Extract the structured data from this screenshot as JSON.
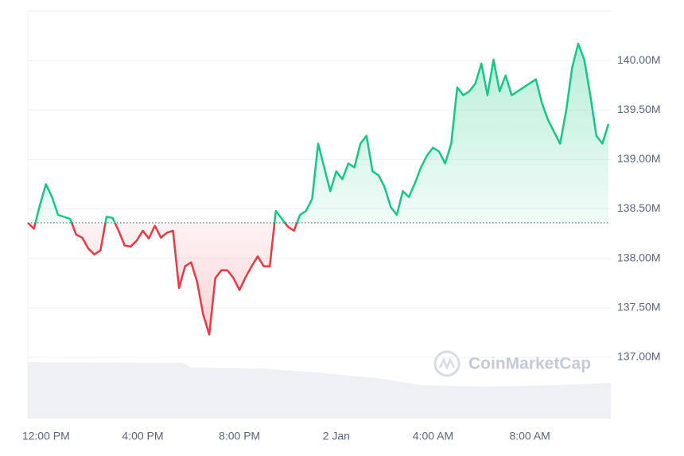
{
  "chart_data": {
    "type": "baseline-line",
    "categories": [
      null,
      null,
      null,
      "12:00 PM",
      null,
      null,
      null,
      null,
      null,
      null,
      null,
      null,
      null,
      null,
      null,
      null,
      null,
      null,
      null,
      "4:00 PM",
      null,
      null,
      null,
      null,
      null,
      null,
      null,
      null,
      null,
      null,
      null,
      null,
      null,
      null,
      null,
      "8:00 PM",
      null,
      null,
      null,
      null,
      null,
      null,
      null,
      null,
      null,
      null,
      null,
      null,
      null,
      null,
      null,
      "2 Jan",
      null,
      null,
      null,
      null,
      null,
      null,
      null,
      null,
      null,
      null,
      null,
      null,
      null,
      null,
      null,
      "4:00 AM",
      null,
      null,
      null,
      null,
      null,
      null,
      null,
      null,
      null,
      null,
      null,
      null,
      null,
      null,
      null,
      "8:00 AM",
      null,
      null,
      null,
      null,
      null,
      null,
      null,
      null,
      null,
      null,
      null,
      null,
      null
    ],
    "values": [
      138.36,
      138.3,
      138.54,
      138.75,
      138.62,
      138.44,
      138.42,
      138.4,
      138.24,
      138.21,
      138.1,
      138.04,
      138.08,
      138.42,
      138.41,
      138.28,
      138.13,
      138.12,
      138.18,
      138.28,
      138.2,
      138.33,
      138.21,
      138.26,
      138.28,
      137.7,
      137.92,
      137.96,
      137.76,
      137.43,
      137.23,
      137.8,
      137.88,
      137.88,
      137.8,
      137.68,
      137.81,
      137.92,
      138.02,
      137.92,
      137.92,
      138.48,
      138.4,
      138.32,
      138.28,
      138.44,
      138.48,
      138.6,
      139.16,
      138.92,
      138.68,
      138.88,
      138.8,
      138.96,
      138.92,
      139.16,
      139.24,
      138.88,
      138.84,
      138.72,
      138.52,
      138.44,
      138.68,
      138.62,
      138.76,
      138.92,
      139.04,
      139.12,
      139.08,
      138.96,
      139.16,
      139.73,
      139.65,
      139.69,
      139.77,
      139.97,
      139.65,
      140.01,
      139.69,
      139.85,
      139.65,
      139.69,
      139.73,
      139.77,
      139.81,
      139.57,
      139.4,
      139.28,
      139.16,
      139.49,
      139.93,
      140.17,
      140.01,
      139.65,
      139.24,
      139.16,
      139.36
    ],
    "reference_value": 138.36,
    "colors": {
      "above": "#16c784",
      "below": "#ea3943"
    },
    "ylim": [
      136.38,
      140.5
    ],
    "yticks": [
      {
        "value": 137,
        "label": "137.00M"
      },
      {
        "value": 137.5,
        "label": "137.50M"
      },
      {
        "value": 138,
        "label": "138.00M"
      },
      {
        "value": 138.5,
        "label": "138.50M"
      },
      {
        "value": 139,
        "label": "139.00M"
      },
      {
        "value": 139.5,
        "label": "139.50M"
      },
      {
        "value": 140,
        "label": "140.00M"
      }
    ],
    "grid": true,
    "watermark": "CoinMarketCap"
  }
}
